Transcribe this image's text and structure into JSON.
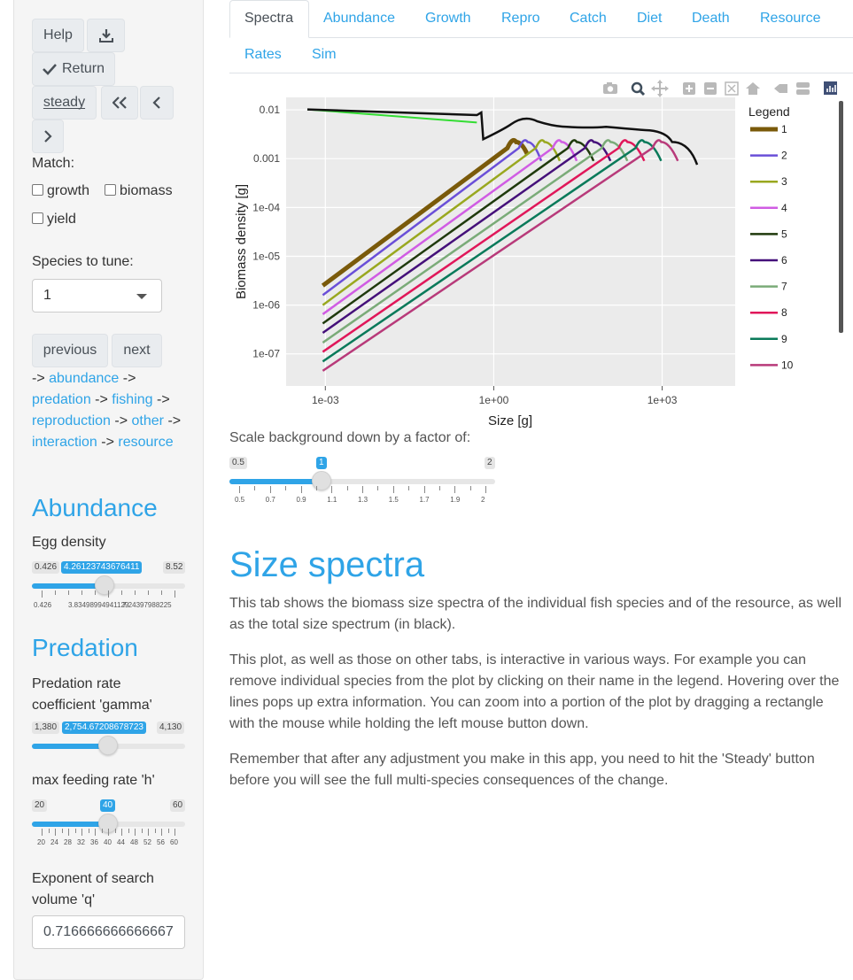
{
  "sidebar": {
    "help_label": "Help",
    "return_label": "Return",
    "steady_label": "steady",
    "match_label": "Match:",
    "match_options": [
      "growth",
      "biomass",
      "yield"
    ],
    "species_label": "Species to tune:",
    "species_value": "1",
    "previous_label": "previous",
    "next_label": "next",
    "nav": {
      "arrow": "->",
      "links": [
        "abundance",
        "predation",
        "fishing",
        "reproduction",
        "other",
        "interaction",
        "resource"
      ]
    },
    "abundance_title": "Abundance",
    "egg_density": {
      "label": "Egg density",
      "min": "0.426",
      "max": "8.52",
      "value": "4.26123743676411",
      "fraction": 0.5,
      "ticks": [
        "0.426",
        "3.83498994941129",
        "7.24397988225"
      ]
    },
    "predation_title": "Predation",
    "gamma": {
      "label": "Predation rate coefficient 'gamma'",
      "min": "1,380",
      "max": "4,130",
      "value": "2,754.67208678723",
      "fraction": 0.5
    },
    "h": {
      "label": "max feeding rate 'h'",
      "min": "20",
      "max": "60",
      "value": "40",
      "fraction": 0.5,
      "ticks": [
        "20",
        "24",
        "28",
        "32",
        "36",
        "40",
        "44",
        "48",
        "52",
        "56",
        "60"
      ]
    },
    "q": {
      "label": "Exponent of search volume 'q'",
      "value": "0.716666666666667"
    }
  },
  "tabs": [
    "Spectra",
    "Abundance",
    "Growth",
    "Repro",
    "Catch",
    "Diet",
    "Death",
    "Resource",
    "Rates",
    "Sim"
  ],
  "active_tab": "Spectra",
  "toolbar_icons": [
    "camera-icon",
    "zoom-icon",
    "pan-icon",
    "zoom-in-icon",
    "zoom-out-icon",
    "autoscale-icon",
    "reset-axes-icon",
    "spike-lines-icon",
    "compare-hover-icon",
    "plotly-logo-icon"
  ],
  "chart_data": {
    "type": "line",
    "xlabel": "Size [g]",
    "ylabel": "Biomass density [g]",
    "x_scale": "log",
    "y_scale": "log",
    "x_ticks": [
      "1e-03",
      "1e+00",
      "1e+03"
    ],
    "y_ticks": [
      "0.01",
      "0.001",
      "1e-04",
      "1e-05",
      "1e-06",
      "1e-07"
    ],
    "legend_title": "Legend",
    "legend_position": "right",
    "series": [
      {
        "name": "1",
        "color": "#7a5a0a",
        "start": [
          0.0009,
          2.5e-06
        ],
        "peak": [
          2.5,
          0.0022
        ],
        "end": [
          4,
          0.0012
        ]
      },
      {
        "name": "2",
        "color": "#6a4fd8",
        "start": [
          0.0009,
          1.6e-06
        ],
        "peak": [
          4,
          0.0022
        ],
        "end": [
          7,
          0.0009
        ]
      },
      {
        "name": "3",
        "color": "#99a81f",
        "start": [
          0.0009,
          1e-06
        ],
        "peak": [
          8,
          0.0022
        ],
        "end": [
          15,
          0.0009
        ]
      },
      {
        "name": "4",
        "color": "#d05ce3",
        "start": [
          0.0009,
          6.5e-07
        ],
        "peak": [
          16,
          0.0022
        ],
        "end": [
          30,
          0.0009
        ]
      },
      {
        "name": "5",
        "color": "#1f3a0c",
        "start": [
          0.0009,
          4.2e-07
        ],
        "peak": [
          30,
          0.0022
        ],
        "end": [
          60,
          0.0009
        ]
      },
      {
        "name": "6",
        "color": "#45107a",
        "start": [
          0.0009,
          2.7e-07
        ],
        "peak": [
          60,
          0.0022
        ],
        "end": [
          120,
          0.0009
        ]
      },
      {
        "name": "7",
        "color": "#7aab78",
        "start": [
          0.0009,
          1.7e-07
        ],
        "peak": [
          120,
          0.0022
        ],
        "end": [
          240,
          0.0009
        ]
      },
      {
        "name": "8",
        "color": "#e0175a",
        "start": [
          0.0009,
          1.1e-07
        ],
        "peak": [
          240,
          0.0022
        ],
        "end": [
          480,
          0.0009
        ]
      },
      {
        "name": "9",
        "color": "#0a7a5a",
        "start": [
          0.0009,
          7e-08
        ],
        "peak": [
          480,
          0.0022
        ],
        "end": [
          960,
          0.0009
        ]
      },
      {
        "name": "10",
        "color": "#b83a7a",
        "start": [
          0.0009,
          4.5e-08
        ],
        "peak": [
          960,
          0.0022
        ],
        "end": [
          1900,
          0.0009
        ]
      }
    ]
  },
  "scale": {
    "label": "Scale background down by a factor of:",
    "min": "0.5",
    "max": "2",
    "value": "1",
    "fraction": 0.333,
    "ticks": [
      "0.5",
      "0.7",
      "0.9",
      "1.1",
      "1.3",
      "1.5",
      "1.7",
      "1.9",
      "2"
    ]
  },
  "content": {
    "heading": "Size spectra",
    "p1": "This tab shows the biomass size spectra of the individual fish species and of the resource, as well as the total size spectrum (in black).",
    "p2": "This plot, as well as those on other tabs, is interactive in various ways. For example you can remove individual species from the plot by clicking on their name in the legend. Hovering over the lines pops up extra information. You can zoom into a portion of the plot by dragging a rectangle with the mouse while holding the left mouse button down.",
    "p3": "Remember that after any adjustment you make in this app, you need to hit the 'Steady' button before you will see the full multi-species consequences of the change."
  }
}
